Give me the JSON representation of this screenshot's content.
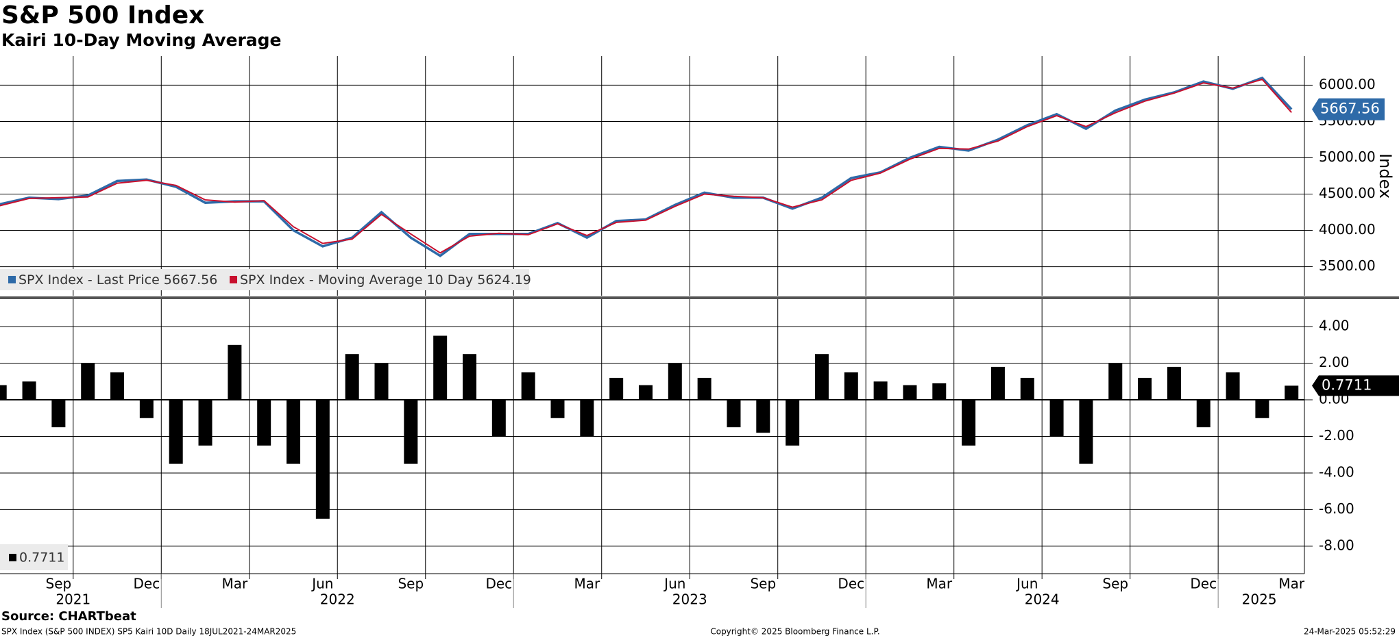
{
  "chart_data": [
    {
      "type": "line",
      "title": "S&P 500 Index",
      "subtitle": "Kairi 10-Day Moving Average",
      "x": [
        "2021-07",
        "2021-08",
        "2021-09",
        "2021-10",
        "2021-11",
        "2021-12",
        "2022-01",
        "2022-02",
        "2022-03",
        "2022-04",
        "2022-05",
        "2022-06",
        "2022-07",
        "2022-08",
        "2022-09",
        "2022-10",
        "2022-11",
        "2022-12",
        "2023-01",
        "2023-02",
        "2023-03",
        "2023-04",
        "2023-05",
        "2023-06",
        "2023-07",
        "2023-08",
        "2023-09",
        "2023-10",
        "2023-11",
        "2023-12",
        "2024-01",
        "2024-02",
        "2024-03",
        "2024-04",
        "2024-05",
        "2024-06",
        "2024-07",
        "2024-08",
        "2024-09",
        "2024-10",
        "2024-11",
        "2024-12",
        "2025-01",
        "2025-02",
        "2025-03"
      ],
      "series": [
        {
          "name": "SPX Index - Last Price",
          "color": "#2e6aa8",
          "values": [
            4360,
            4450,
            4430,
            4480,
            4680,
            4700,
            4600,
            4380,
            4400,
            4400,
            4000,
            3780,
            3900,
            4250,
            3900,
            3650,
            3950,
            3950,
            3950,
            4100,
            3900,
            4130,
            4150,
            4350,
            4520,
            4450,
            4450,
            4300,
            4450,
            4720,
            4800,
            5000,
            5150,
            5100,
            5250,
            5450,
            5600,
            5400,
            5650,
            5800,
            5900,
            6050,
            5950,
            6100,
            5667.56
          ]
        },
        {
          "name": "SPX Index - Moving Average 10 Day",
          "color": "#c8102e",
          "values": [
            4340,
            4440,
            4450,
            4460,
            4650,
            4690,
            4620,
            4420,
            4390,
            4410,
            4050,
            3820,
            3880,
            4220,
            3950,
            3690,
            3920,
            3960,
            3940,
            4090,
            3930,
            4110,
            4140,
            4330,
            4500,
            4470,
            4450,
            4320,
            4420,
            4690,
            4790,
            4980,
            5130,
            5120,
            5230,
            5430,
            5580,
            5430,
            5620,
            5780,
            5890,
            6030,
            5960,
            6080,
            5624.19
          ]
        }
      ],
      "ylim": [
        3100,
        6400
      ],
      "yticks": [
        {
          "value": 3500,
          "label": "3500.00"
        },
        {
          "value": 4000,
          "label": "4000.00"
        },
        {
          "value": 4500,
          "label": "4500.00"
        },
        {
          "value": 5000,
          "label": "5000.00"
        },
        {
          "value": 5500,
          "label": "5500.00"
        },
        {
          "value": 6000,
          "label": "6000.00"
        }
      ],
      "y_label": "Index",
      "grid": true,
      "legend": "bottom-left"
    },
    {
      "type": "bar",
      "x": [
        "2021-07",
        "2021-08",
        "2021-09",
        "2021-10",
        "2021-11",
        "2021-12",
        "2022-01",
        "2022-02",
        "2022-03",
        "2022-04",
        "2022-05",
        "2022-06",
        "2022-07",
        "2022-08",
        "2022-09",
        "2022-10",
        "2022-11",
        "2022-12",
        "2023-01",
        "2023-02",
        "2023-03",
        "2023-04",
        "2023-05",
        "2023-06",
        "2023-07",
        "2023-08",
        "2023-09",
        "2023-10",
        "2023-11",
        "2023-12",
        "2024-01",
        "2024-02",
        "2024-03",
        "2024-04",
        "2024-05",
        "2024-06",
        "2024-07",
        "2024-08",
        "2024-09",
        "2024-10",
        "2024-11",
        "2024-12",
        "2025-01",
        "2025-02",
        "2025-03"
      ],
      "values": [
        0.8,
        1.0,
        -1.5,
        2.0,
        1.5,
        -1.0,
        -3.5,
        -2.5,
        3.0,
        -2.5,
        -3.5,
        -6.5,
        2.5,
        2.0,
        -3.5,
        3.5,
        2.5,
        -2.0,
        1.5,
        -1.0,
        -2.0,
        1.2,
        0.8,
        2.0,
        1.2,
        -1.5,
        -1.8,
        -2.5,
        2.5,
        1.5,
        1.0,
        0.8,
        0.9,
        -2.5,
        1.8,
        1.2,
        -2.0,
        -3.5,
        2.0,
        1.2,
        1.8,
        -1.5,
        1.5,
        -1.0,
        0.7711
      ],
      "color": "#000000",
      "ylim": [
        -9.5,
        5.5
      ],
      "yticks": [
        {
          "value": -8,
          "label": "-8.00"
        },
        {
          "value": -6,
          "label": "-6.00"
        },
        {
          "value": -4,
          "label": "-4.00"
        },
        {
          "value": -2,
          "label": "-2.00"
        },
        {
          "value": 0,
          "label": "0.00"
        },
        {
          "value": 2,
          "label": "2.00"
        },
        {
          "value": 4,
          "label": "4.00"
        }
      ],
      "grid": true,
      "legend": "bottom-left"
    }
  ],
  "x_axis": {
    "xticks": [
      {
        "value": "2021-09",
        "label": "Sep"
      },
      {
        "value": "2021-12",
        "label": "Dec"
      },
      {
        "value": "2022-03",
        "label": "Mar"
      },
      {
        "value": "2022-06",
        "label": "Jun"
      },
      {
        "value": "2022-09",
        "label": "Sep"
      },
      {
        "value": "2022-12",
        "label": "Dec"
      },
      {
        "value": "2023-03",
        "label": "Mar"
      },
      {
        "value": "2023-06",
        "label": "Jun"
      },
      {
        "value": "2023-09",
        "label": "Sep"
      },
      {
        "value": "2023-12",
        "label": "Dec"
      },
      {
        "value": "2024-03",
        "label": "Mar"
      },
      {
        "value": "2024-06",
        "label": "Jun"
      },
      {
        "value": "2024-09",
        "label": "Sep"
      },
      {
        "value": "2024-12",
        "label": "Dec"
      },
      {
        "value": "2025-03",
        "label": "Mar"
      }
    ],
    "years": [
      2021,
      2022,
      2023,
      2024,
      2025
    ]
  },
  "source": "Source: CHARTbeat",
  "footer": {
    "left": "SPX Index (S&P 500 INDEX) SP5 Kairi 10D  Daily 18JUL2021-24MAR2025",
    "center": "Copyright© 2025 Bloomberg Finance L.P.",
    "right": "24-Mar-2025 05:52:29"
  }
}
